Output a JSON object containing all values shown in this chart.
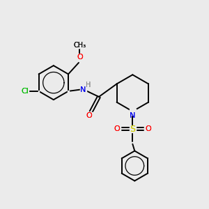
{
  "bg_color": "#ebebeb",
  "atom_colors": {
    "C": "#000000",
    "N": "#0000ee",
    "O": "#ff0000",
    "S": "#cccc00",
    "Cl": "#00bb00",
    "H": "#888888"
  },
  "bond_color": "#000000",
  "bond_width": 1.4,
  "fig_size": [
    3.0,
    3.0
  ],
  "dpi": 100
}
